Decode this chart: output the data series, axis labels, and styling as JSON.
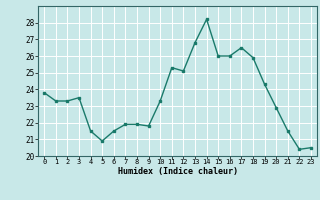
{
  "x": [
    0,
    1,
    2,
    3,
    4,
    5,
    6,
    7,
    8,
    9,
    10,
    11,
    12,
    13,
    14,
    15,
    16,
    17,
    18,
    19,
    20,
    21,
    22,
    23
  ],
  "y": [
    23.8,
    23.3,
    23.3,
    23.5,
    21.5,
    20.9,
    21.5,
    21.9,
    21.9,
    21.8,
    23.3,
    25.3,
    25.1,
    26.8,
    28.2,
    26.0,
    26.0,
    26.5,
    25.9,
    24.3,
    22.9,
    21.5,
    20.4,
    20.5
  ],
  "xlabel": "Humidex (Indice chaleur)",
  "ylim": [
    20,
    29
  ],
  "yticks": [
    20,
    21,
    22,
    23,
    24,
    25,
    26,
    27,
    28
  ],
  "xtick_labels": [
    "0",
    "1",
    "2",
    "3",
    "4",
    "5",
    "6",
    "7",
    "8",
    "9",
    "10",
    "11",
    "12",
    "13",
    "14",
    "15",
    "16",
    "17",
    "18",
    "19",
    "20",
    "21",
    "22",
    "23"
  ],
  "line_color": "#1a7a6a",
  "bg_color": "#c8e8e8",
  "grid_color": "#ffffff",
  "grid_minor_color": "#e0f0f0"
}
